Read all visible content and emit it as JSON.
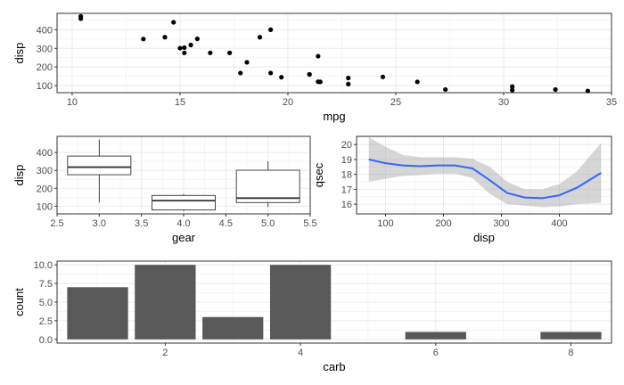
{
  "chart_data": [
    {
      "id": "scatter",
      "type": "scatter",
      "xlabel": "mpg",
      "ylabel": "disp",
      "xlim": [
        9.3,
        35.0
      ],
      "ylim": [
        62,
        488
      ],
      "xticks": [
        10,
        15,
        20,
        25,
        30,
        35
      ],
      "yticks": [
        100,
        200,
        300,
        400
      ],
      "points": [
        {
          "x": 21.0,
          "y": 160
        },
        {
          "x": 21.0,
          "y": 160
        },
        {
          "x": 22.8,
          "y": 108
        },
        {
          "x": 21.4,
          "y": 258
        },
        {
          "x": 18.7,
          "y": 360
        },
        {
          "x": 18.1,
          "y": 225
        },
        {
          "x": 14.3,
          "y": 360
        },
        {
          "x": 24.4,
          "y": 146.7
        },
        {
          "x": 22.8,
          "y": 140.8
        },
        {
          "x": 19.2,
          "y": 167.6
        },
        {
          "x": 17.8,
          "y": 167.6
        },
        {
          "x": 16.4,
          "y": 275.8
        },
        {
          "x": 17.3,
          "y": 275.8
        },
        {
          "x": 15.2,
          "y": 275.8
        },
        {
          "x": 10.4,
          "y": 472
        },
        {
          "x": 10.4,
          "y": 460
        },
        {
          "x": 14.7,
          "y": 440
        },
        {
          "x": 32.4,
          "y": 78.7
        },
        {
          "x": 30.4,
          "y": 75.7
        },
        {
          "x": 33.9,
          "y": 71.1
        },
        {
          "x": 21.5,
          "y": 120.1
        },
        {
          "x": 15.5,
          "y": 318
        },
        {
          "x": 15.2,
          "y": 304
        },
        {
          "x": 13.3,
          "y": 350
        },
        {
          "x": 19.2,
          "y": 400
        },
        {
          "x": 27.3,
          "y": 79
        },
        {
          "x": 26.0,
          "y": 120.3
        },
        {
          "x": 30.4,
          "y": 95.1
        },
        {
          "x": 15.8,
          "y": 351
        },
        {
          "x": 19.7,
          "y": 145
        },
        {
          "x": 15.0,
          "y": 301
        },
        {
          "x": 21.4,
          "y": 121
        }
      ]
    },
    {
      "id": "boxplot",
      "type": "box",
      "xlabel": "gear",
      "ylabel": "disp",
      "xlim": [
        2.5,
        5.5
      ],
      "ylim": [
        57,
        490
      ],
      "xticks": [
        "2.5",
        "3.0",
        "3.5",
        "4.0",
        "4.5",
        "5.0",
        "5.5"
      ],
      "yticks": [
        100,
        200,
        300,
        400
      ],
      "boxes": [
        {
          "x": 3,
          "min": 120.1,
          "q1": 275.8,
          "median": 318,
          "q3": 380,
          "max": 472
        },
        {
          "x": 4,
          "min": 71.1,
          "q1": 78.9,
          "median": 130.9,
          "q3": 160,
          "max": 167.6
        },
        {
          "x": 5,
          "min": 95.1,
          "q1": 120.3,
          "median": 145,
          "q3": 301,
          "max": 351
        }
      ]
    },
    {
      "id": "smooth",
      "type": "line",
      "xlabel": "disp",
      "ylabel": "qsec",
      "xlim": [
        50,
        490
      ],
      "ylim": [
        15.35,
        20.55
      ],
      "xticks": [
        100,
        200,
        300,
        400
      ],
      "yticks": [
        16,
        17,
        18,
        19,
        20
      ],
      "x": [
        71.1,
        100,
        130,
        160,
        190,
        220,
        250,
        280,
        310,
        340,
        370,
        400,
        430,
        472
      ],
      "y": [
        19.0,
        18.75,
        18.6,
        18.55,
        18.6,
        18.6,
        18.4,
        17.6,
        16.75,
        16.45,
        16.4,
        16.6,
        17.1,
        18.1
      ],
      "ci_upper": [
        20.5,
        19.85,
        19.3,
        19.15,
        19.15,
        19.15,
        19.05,
        18.5,
        17.5,
        17.0,
        17.0,
        17.35,
        18.2,
        20.1
      ],
      "ci_lower": [
        17.5,
        17.7,
        17.9,
        17.95,
        18.05,
        18.05,
        17.75,
        16.7,
        16.0,
        15.9,
        15.8,
        15.85,
        16.0,
        16.1
      ],
      "line_color": "#3366ff",
      "band_color": "#999999"
    },
    {
      "id": "barplot",
      "type": "bar",
      "xlabel": "carb",
      "ylabel": "count",
      "xlim": [
        0.4,
        8.6
      ],
      "ylim": [
        -0.5,
        10.5
      ],
      "xticks": [
        2,
        4,
        6,
        8
      ],
      "yticks": [
        "0.0",
        "2.5",
        "5.0",
        "7.5",
        "10.0"
      ],
      "categories": [
        1,
        2,
        3,
        4,
        6,
        8
      ],
      "values": [
        7,
        10,
        3,
        10,
        1,
        1
      ],
      "bar_color": "#595959"
    }
  ]
}
